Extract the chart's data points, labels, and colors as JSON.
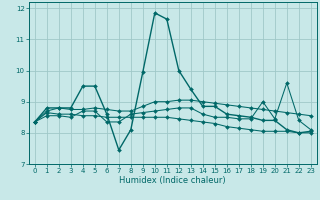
{
  "xlabel": "Humidex (Indice chaleur)",
  "background_color": "#c8e8e8",
  "grid_color": "#a0c8c8",
  "line_color": "#006868",
  "xlim": [
    -0.5,
    23.5
  ],
  "ylim": [
    7,
    12.2
  ],
  "yticks": [
    7,
    8,
    9,
    10,
    11,
    12
  ],
  "xticks": [
    0,
    1,
    2,
    3,
    4,
    5,
    6,
    7,
    8,
    9,
    10,
    11,
    12,
    13,
    14,
    15,
    16,
    17,
    18,
    19,
    20,
    21,
    22,
    23
  ],
  "lines": [
    {
      "x": [
        0,
        1,
        2,
        3,
        4,
        5,
        6,
        7,
        8,
        9,
        10,
        11,
        12,
        13,
        14,
        15,
        16,
        17,
        18,
        19,
        20,
        21,
        22,
        23
      ],
      "y": [
        8.35,
        8.8,
        8.8,
        8.8,
        9.5,
        9.5,
        8.6,
        7.45,
        8.1,
        9.95,
        11.85,
        11.65,
        10.0,
        9.4,
        8.85,
        8.85,
        8.6,
        8.55,
        8.5,
        8.4,
        8.4,
        8.1,
        8.0,
        8.05
      ]
    },
    {
      "x": [
        0,
        1,
        2,
        3,
        4,
        5,
        6,
        7,
        8,
        9,
        10,
        11,
        12,
        13,
        14,
        15,
        16,
        17,
        18,
        19,
        20,
        21,
        22,
        23
      ],
      "y": [
        8.35,
        8.7,
        8.8,
        8.75,
        8.75,
        8.8,
        8.75,
        8.7,
        8.7,
        8.85,
        9.0,
        9.0,
        9.05,
        9.05,
        9.0,
        8.95,
        8.9,
        8.85,
        8.8,
        8.75,
        8.7,
        8.65,
        8.6,
        8.55
      ]
    },
    {
      "x": [
        0,
        1,
        2,
        3,
        4,
        5,
        6,
        7,
        8,
        9,
        10,
        11,
        12,
        13,
        14,
        15,
        16,
        17,
        18,
        19,
        20,
        21,
        22,
        23
      ],
      "y": [
        8.35,
        8.65,
        8.6,
        8.6,
        8.55,
        8.55,
        8.5,
        8.5,
        8.5,
        8.5,
        8.5,
        8.5,
        8.45,
        8.4,
        8.35,
        8.3,
        8.2,
        8.15,
        8.1,
        8.05,
        8.05,
        8.05,
        8.0,
        8.0
      ]
    },
    {
      "x": [
        0,
        1,
        2,
        3,
        4,
        5,
        6,
        7,
        8,
        9,
        10,
        11,
        12,
        13,
        14,
        15,
        16,
        17,
        18,
        19,
        20,
        21,
        22,
        23
      ],
      "y": [
        8.35,
        8.55,
        8.55,
        8.5,
        8.7,
        8.7,
        8.35,
        8.35,
        8.6,
        8.65,
        8.7,
        8.75,
        8.8,
        8.8,
        8.6,
        8.5,
        8.5,
        8.45,
        8.45,
        9.0,
        8.45,
        9.6,
        8.4,
        8.1
      ]
    }
  ]
}
